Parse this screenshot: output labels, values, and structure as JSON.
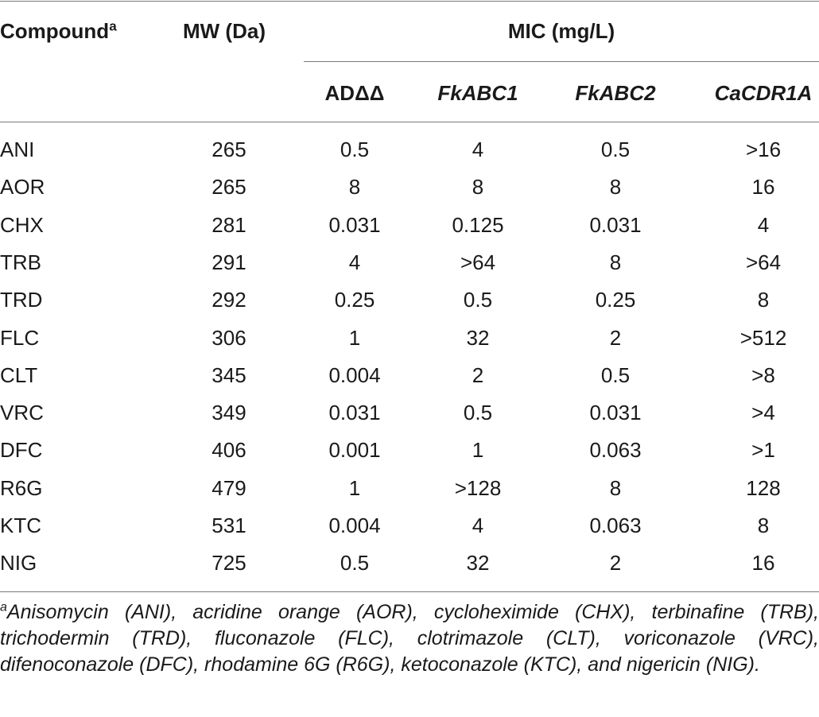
{
  "header": {
    "compound": "Compound",
    "compound_sup": "a",
    "mw": "MW (Da)",
    "mic": "MIC (mg/L)",
    "strains": [
      "ADΔΔ",
      "FkABC1",
      "FkABC2",
      "CaCDR1A"
    ]
  },
  "rows": [
    [
      "ANI",
      "265",
      "0.5",
      "4",
      "0.5",
      ">16"
    ],
    [
      "AOR",
      "265",
      "8",
      "8",
      "8",
      "16"
    ],
    [
      "CHX",
      "281",
      "0.031",
      "0.125",
      "0.031",
      "4"
    ],
    [
      "TRB",
      "291",
      "4",
      ">64",
      "8",
      ">64"
    ],
    [
      "TRD",
      "292",
      "0.25",
      "0.5",
      "0.25",
      "8"
    ],
    [
      "FLC",
      "306",
      "1",
      "32",
      "2",
      ">512"
    ],
    [
      "CLT",
      "345",
      "0.004",
      "2",
      "0.5",
      ">8"
    ],
    [
      "VRC",
      "349",
      "0.031",
      "0.5",
      "0.031",
      ">4"
    ],
    [
      "DFC",
      "406",
      "0.001",
      "1",
      "0.063",
      ">1"
    ],
    [
      "R6G",
      "479",
      "1",
      ">128",
      "8",
      "128"
    ],
    [
      "KTC",
      "531",
      "0.004",
      "4",
      "0.063",
      "8"
    ],
    [
      "NIG",
      "725",
      "0.5",
      "32",
      "2",
      "16"
    ]
  ],
  "footnote": {
    "marker": "a",
    "text": "Anisomycin (ANI), acridine orange (AOR), cycloheximide (CHX), terbinafine (TRB), trichodermin (TRD), fluconazole (FLC), clotrimazole (CLT), voriconazole (VRC), difenoconazole (DFC), rhodamine 6G (R6G), ketoconazole (KTC), and nigericin (NIG)."
  }
}
